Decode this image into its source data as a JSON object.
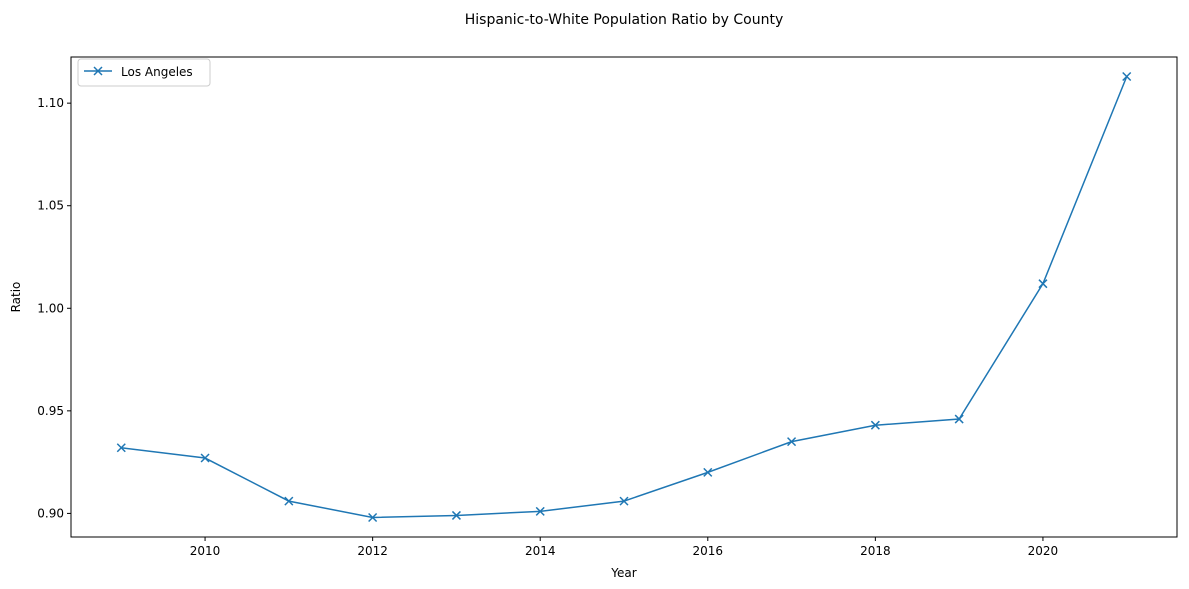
{
  "chart_data": {
    "type": "line",
    "title": "Hispanic-to-White Population Ratio by County",
    "xlabel": "Year",
    "ylabel": "Ratio",
    "xlim": [
      2008.4,
      2021.6
    ],
    "ylim": [
      0.8885,
      1.1225
    ],
    "xticks": [
      2010,
      2012,
      2014,
      2016,
      2018,
      2020
    ],
    "yticks": [
      0.9,
      0.95,
      1.0,
      1.05,
      1.1
    ],
    "ytick_labels": [
      "0.90",
      "0.95",
      "1.00",
      "1.05",
      "1.10"
    ],
    "grid": false,
    "legend_position": "upper left",
    "series": [
      {
        "name": "Los Angeles",
        "color": "#1f77b4",
        "marker": "x",
        "x": [
          2009,
          2010,
          2011,
          2012,
          2013,
          2014,
          2015,
          2016,
          2017,
          2018,
          2019,
          2020,
          2021
        ],
        "y": [
          0.932,
          0.927,
          0.906,
          0.898,
          0.899,
          0.901,
          0.906,
          0.92,
          0.935,
          0.943,
          0.946,
          1.012,
          1.113
        ]
      }
    ]
  }
}
